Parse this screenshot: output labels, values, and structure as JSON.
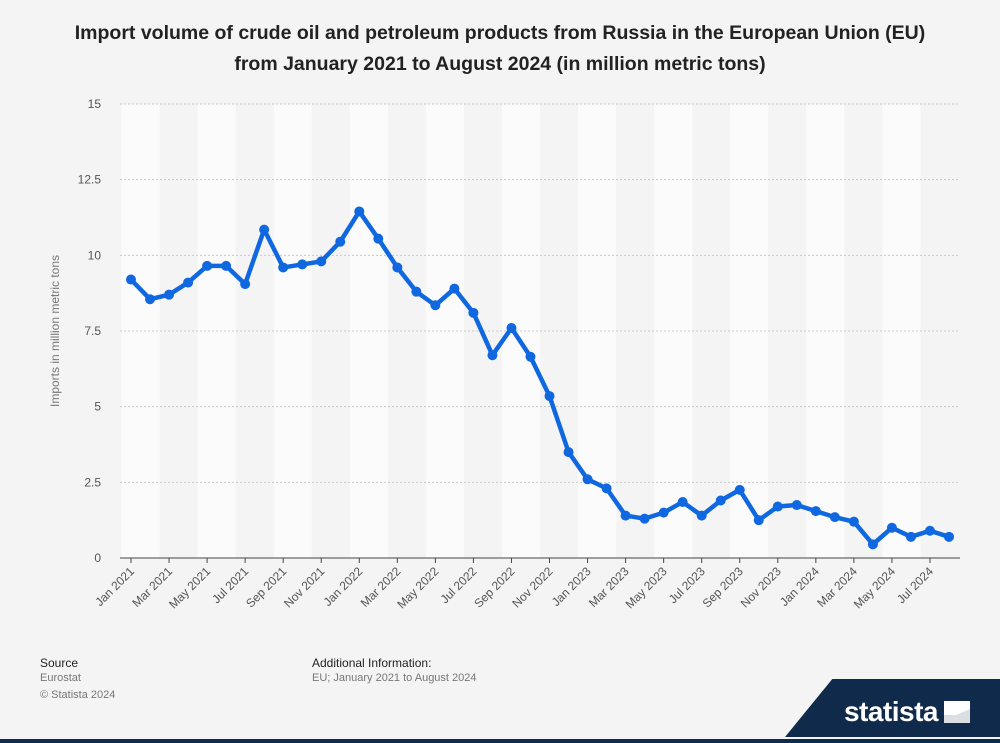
{
  "title": "Import volume of crude oil and petroleum products from Russia in the European Union (EU) from January 2021 to August 2024 (in million metric tons)",
  "footer": {
    "source_label": "Source",
    "source_value": "Eurostat",
    "copyright": "© Statista 2024",
    "additional_label": "Additional Information:",
    "additional_value": "EU; January 2021 to August 2024"
  },
  "brand": {
    "name": "statista",
    "color": "#0f2a4a"
  },
  "chart_data": {
    "type": "line",
    "title": "Import volume of crude oil and petroleum products from Russia in the European Union (EU) from January 2021 to August 2024 (in million metric tons)",
    "xlabel": "",
    "ylabel": "Imports in million metric tons",
    "ylim": [
      0,
      15
    ],
    "yticks": [
      "0",
      "2.5",
      "5",
      "7.5",
      "10",
      "12.5",
      "15"
    ],
    "grid": true,
    "line_color": "#1068e0",
    "x": [
      "Jan 2021",
      "Feb 2021",
      "Mar 2021",
      "Apr 2021",
      "May 2021",
      "Jun 2021",
      "Jul 2021",
      "Aug 2021",
      "Sep 2021",
      "Oct 2021",
      "Nov 2021",
      "Dec 2021",
      "Jan 2022",
      "Feb 2022",
      "Mar 2022",
      "Apr 2022",
      "May 2022",
      "Jun 2022",
      "Jul 2022",
      "Aug 2022",
      "Sep 2022",
      "Oct 2022",
      "Nov 2022",
      "Dec 2022",
      "Jan 2023",
      "Feb 2023",
      "Mar 2023",
      "Apr 2023",
      "May 2023",
      "Jun 2023",
      "Jul 2023",
      "Aug 2023",
      "Sep 2023",
      "Oct 2023",
      "Nov 2023",
      "Dec 2023",
      "Jan 2024",
      "Feb 2024",
      "Mar 2024",
      "Apr 2024",
      "May 2024",
      "Jun 2024",
      "Jul 2024",
      "Aug 2024"
    ],
    "x_tick_labels": [
      "Jan 2021",
      "Mar 2021",
      "May 2021",
      "Jul 2021",
      "Sep 2021",
      "Nov 2021",
      "Jan 2022",
      "Mar 2022",
      "May 2022",
      "Jul 2022",
      "Sep 2022",
      "Nov 2022",
      "Jan 2023",
      "Mar 2023",
      "May 2023",
      "Jul 2023",
      "Sep 2023",
      "Nov 2023",
      "Jan 2024",
      "Mar 2024",
      "May 2024",
      "Jul 2024"
    ],
    "series": [
      {
        "values": [
          9.2,
          8.55,
          8.7,
          9.1,
          9.65,
          9.65,
          9.05,
          10.85,
          9.6,
          9.7,
          9.8,
          10.45,
          11.45,
          10.55,
          9.6,
          8.8,
          8.35,
          8.9,
          8.1,
          6.7,
          7.6,
          6.65,
          5.35,
          3.5,
          2.6,
          2.3,
          1.4,
          1.3,
          1.5,
          1.85,
          1.4,
          1.9,
          2.25,
          1.25,
          1.7,
          1.75,
          1.55,
          1.35,
          1.2,
          0.45,
          1.0,
          0.7,
          0.9,
          0.7
        ]
      }
    ]
  }
}
